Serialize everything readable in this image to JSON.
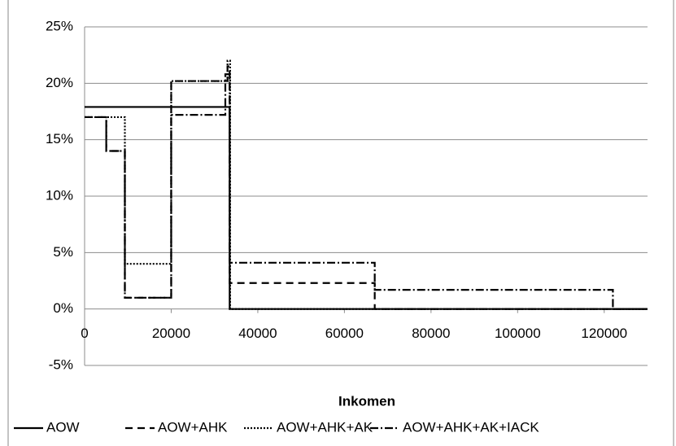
{
  "chart_data": {
    "type": "line",
    "xlabel": "Inkomen",
    "xlim": [
      0,
      130000
    ],
    "xticks": [
      0,
      20000,
      40000,
      60000,
      80000,
      100000,
      120000
    ],
    "ylim": [
      -5,
      25
    ],
    "yticks": [
      {
        "value": -5,
        "label": "-5%"
      },
      {
        "value": 0,
        "label": "0%"
      },
      {
        "value": 5,
        "label": "5%"
      },
      {
        "value": 10,
        "label": "10%"
      },
      {
        "value": 15,
        "label": "15%"
      },
      {
        "value": 20,
        "label": "20%"
      },
      {
        "value": 25,
        "label": "25%"
      }
    ],
    "grid": true,
    "legend": "bottom",
    "series": [
      {
        "name": "AOW",
        "color": "#000000",
        "dash": "none",
        "x": [
          0,
          33500,
          33500,
          130000
        ],
        "values": [
          17.9,
          17.9,
          0,
          0
        ]
      },
      {
        "name": "AOW+AHK",
        "color": "#000000",
        "dash": "9,6",
        "x": [
          0,
          5000,
          5000,
          9300,
          9300,
          20000,
          20000,
          33000,
          33000,
          33500,
          33500,
          67000,
          67000,
          130000
        ],
        "values": [
          17,
          17,
          14,
          14,
          1,
          1,
          20.2,
          20.2,
          21.5,
          21.5,
          2.3,
          2.3,
          0,
          0
        ]
      },
      {
        "name": "AOW+AHK+AK",
        "color": "#000000",
        "dash": "2,2",
        "x": [
          0,
          9300,
          9300,
          20000,
          20000,
          33000,
          33000,
          33600,
          33600,
          130000
        ],
        "values": [
          17,
          17,
          4,
          4,
          20.2,
          20.2,
          22,
          22,
          0,
          0
        ]
      },
      {
        "name": "AOW+AHK+AK+IACK",
        "color": "#000000",
        "dash": "10,3,2,3",
        "x": [
          0,
          5000,
          5000,
          9300,
          9300,
          20000,
          20000,
          32500,
          32500,
          33500,
          33500,
          67000,
          67000,
          122000,
          122000,
          130000
        ],
        "values": [
          17,
          17,
          14,
          14,
          1,
          1,
          17.2,
          17.2,
          20.8,
          20.8,
          4.1,
          4.1,
          1.7,
          1.7,
          0,
          0
        ]
      }
    ]
  }
}
